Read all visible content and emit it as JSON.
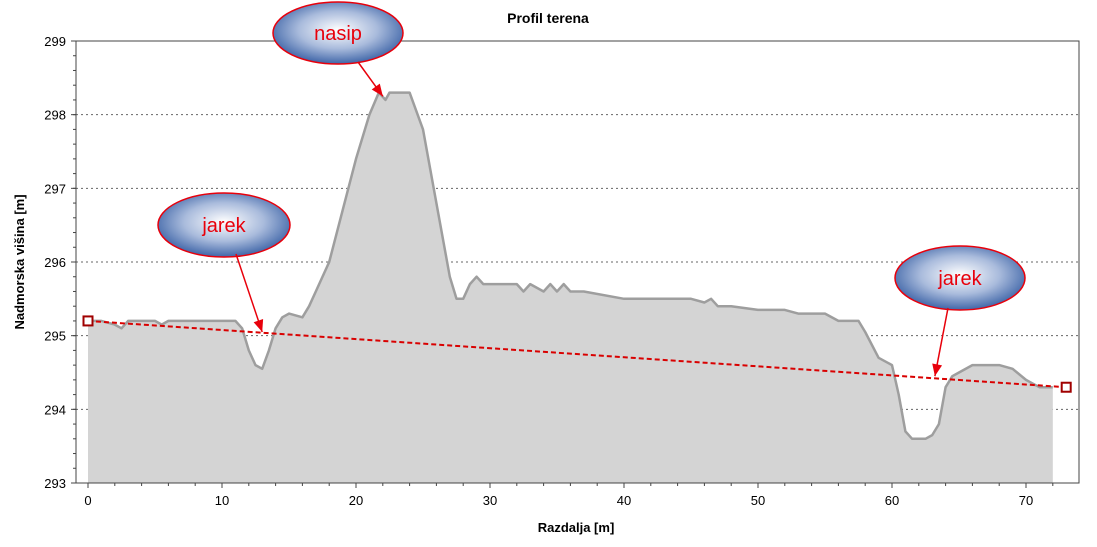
{
  "chart_data": {
    "type": "area",
    "title": "Profil terena",
    "xlabel": "Razdalja [m]",
    "ylabel": "Nadmorska višina [m]",
    "xlim": [
      0,
      73
    ],
    "ylim": [
      293,
      299
    ],
    "x_ticks": [
      0,
      10,
      20,
      30,
      40,
      50,
      60,
      70
    ],
    "y_ticks": [
      293,
      294,
      295,
      296,
      297,
      298,
      299
    ],
    "grid": "horizontal dotted",
    "colors": {
      "fill": "#d4d4d4",
      "outline": "#9e9e9e",
      "line": "#d90000",
      "marker": "#a00000"
    },
    "series": [
      {
        "values": [
          [
            0,
            295.2
          ],
          [
            1,
            295.2
          ],
          [
            2,
            295.15
          ],
          [
            2.5,
            295.1
          ],
          [
            3,
            295.2
          ],
          [
            5,
            295.2
          ],
          [
            5.5,
            295.15
          ],
          [
            6,
            295.2
          ],
          [
            8,
            295.2
          ],
          [
            10,
            295.2
          ],
          [
            11,
            295.2
          ],
          [
            11.5,
            295.1
          ],
          [
            12,
            294.8
          ],
          [
            12.5,
            294.6
          ],
          [
            13,
            294.55
          ],
          [
            13.5,
            294.8
          ],
          [
            14,
            295.1
          ],
          [
            14.5,
            295.25
          ],
          [
            15,
            295.3
          ],
          [
            16,
            295.25
          ],
          [
            16.5,
            295.4
          ],
          [
            17,
            295.6
          ],
          [
            18,
            296.0
          ],
          [
            19,
            296.7
          ],
          [
            20,
            297.4
          ],
          [
            21,
            298.0
          ],
          [
            21.7,
            298.3
          ],
          [
            22.2,
            298.2
          ],
          [
            22.5,
            298.3
          ],
          [
            23,
            298.3
          ],
          [
            24,
            298.3
          ],
          [
            25,
            297.8
          ],
          [
            26,
            296.8
          ],
          [
            27,
            295.8
          ],
          [
            27.5,
            295.5
          ],
          [
            28,
            295.5
          ],
          [
            28.5,
            295.7
          ],
          [
            29,
            295.8
          ],
          [
            29.5,
            295.7
          ],
          [
            31,
            295.7
          ],
          [
            32,
            295.7
          ],
          [
            32.5,
            295.6
          ],
          [
            33,
            295.7
          ],
          [
            34,
            295.6
          ],
          [
            34.5,
            295.7
          ],
          [
            35,
            295.6
          ],
          [
            35.5,
            295.7
          ],
          [
            36,
            295.6
          ],
          [
            37,
            295.6
          ],
          [
            40,
            295.5
          ],
          [
            45,
            295.5
          ],
          [
            46,
            295.45
          ],
          [
            46.5,
            295.5
          ],
          [
            47,
            295.4
          ],
          [
            48,
            295.4
          ],
          [
            50,
            295.35
          ],
          [
            52,
            295.35
          ],
          [
            53,
            295.3
          ],
          [
            55,
            295.3
          ],
          [
            56,
            295.2
          ],
          [
            57,
            295.2
          ],
          [
            57.5,
            295.2
          ],
          [
            58,
            295.05
          ],
          [
            59,
            294.7
          ],
          [
            60,
            294.6
          ],
          [
            60.5,
            294.2
          ],
          [
            61,
            293.7
          ],
          [
            61.5,
            293.6
          ],
          [
            62.5,
            293.6
          ],
          [
            63,
            293.65
          ],
          [
            63.5,
            293.8
          ],
          [
            64,
            294.3
          ],
          [
            64.5,
            294.45
          ],
          [
            65,
            294.5
          ],
          [
            66,
            294.6
          ],
          [
            67,
            294.6
          ],
          [
            68,
            294.6
          ],
          [
            69,
            294.55
          ],
          [
            70,
            294.4
          ],
          [
            71,
            294.3
          ],
          [
            72,
            294.3
          ]
        ]
      },
      {
        "values": [
          [
            0,
            295.2
          ],
          [
            73,
            294.3
          ]
        ]
      }
    ],
    "annotations": [
      {
        "text": "nasip",
        "arrow_to": [
          22,
          298.25
        ]
      },
      {
        "text": "jarek",
        "arrow_to": [
          13,
          295.05
        ]
      },
      {
        "text": "jarek",
        "arrow_to": [
          63.2,
          294.45
        ]
      }
    ]
  }
}
